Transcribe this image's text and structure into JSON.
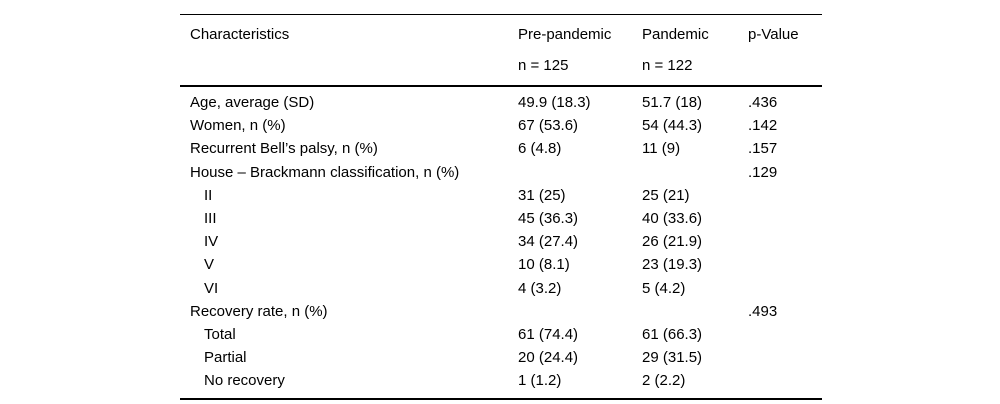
{
  "colors": {
    "background": "#ffffff",
    "text": "#000000",
    "rule": "#000000"
  },
  "table": {
    "header": {
      "characteristics": "Characteristics",
      "pre_pandemic": "Pre-pandemic",
      "pre_pandemic_n": "n = 125",
      "pandemic": "Pandemic",
      "pandemic_n": "n = 122",
      "p_value": "p-Value"
    },
    "rows": [
      {
        "label": "Age, average (SD)",
        "indent": false,
        "pre": "49.9 (18.3)",
        "pan": "51.7 (18)",
        "p": ".436"
      },
      {
        "label": "Women, n (%)",
        "indent": false,
        "pre": "67 (53.6)",
        "pan": "54 (44.3)",
        "p": ".142"
      },
      {
        "label": "Recurrent Bell’s palsy, n (%)",
        "indent": false,
        "pre": "6 (4.8)",
        "pan": "11 (9)",
        "p": ".157"
      },
      {
        "label": "House – Brackmann classification, n (%)",
        "indent": false,
        "pre": "",
        "pan": "",
        "p": ".129"
      },
      {
        "label": "II",
        "indent": true,
        "pre": "31 (25)",
        "pan": "25 (21)",
        "p": ""
      },
      {
        "label": "III",
        "indent": true,
        "pre": "45 (36.3)",
        "pan": "40 (33.6)",
        "p": ""
      },
      {
        "label": "IV",
        "indent": true,
        "pre": "34 (27.4)",
        "pan": "26 (21.9)",
        "p": ""
      },
      {
        "label": "V",
        "indent": true,
        "pre": "10 (8.1)",
        "pan": "23 (19.3)",
        "p": ""
      },
      {
        "label": "VI",
        "indent": true,
        "pre": "4 (3.2)",
        "pan": "5 (4.2)",
        "p": ""
      },
      {
        "label": "Recovery rate, n (%)",
        "indent": false,
        "pre": "",
        "pan": "",
        "p": ".493"
      },
      {
        "label": "Total",
        "indent": true,
        "pre": "61 (74.4)",
        "pan": "61 (66.3)",
        "p": ""
      },
      {
        "label": "Partial",
        "indent": true,
        "pre": "20 (24.4)",
        "pan": "29 (31.5)",
        "p": ""
      },
      {
        "label": "No recovery",
        "indent": true,
        "pre": "1 (1.2)",
        "pan": "2 (2.2)",
        "p": ""
      }
    ]
  }
}
